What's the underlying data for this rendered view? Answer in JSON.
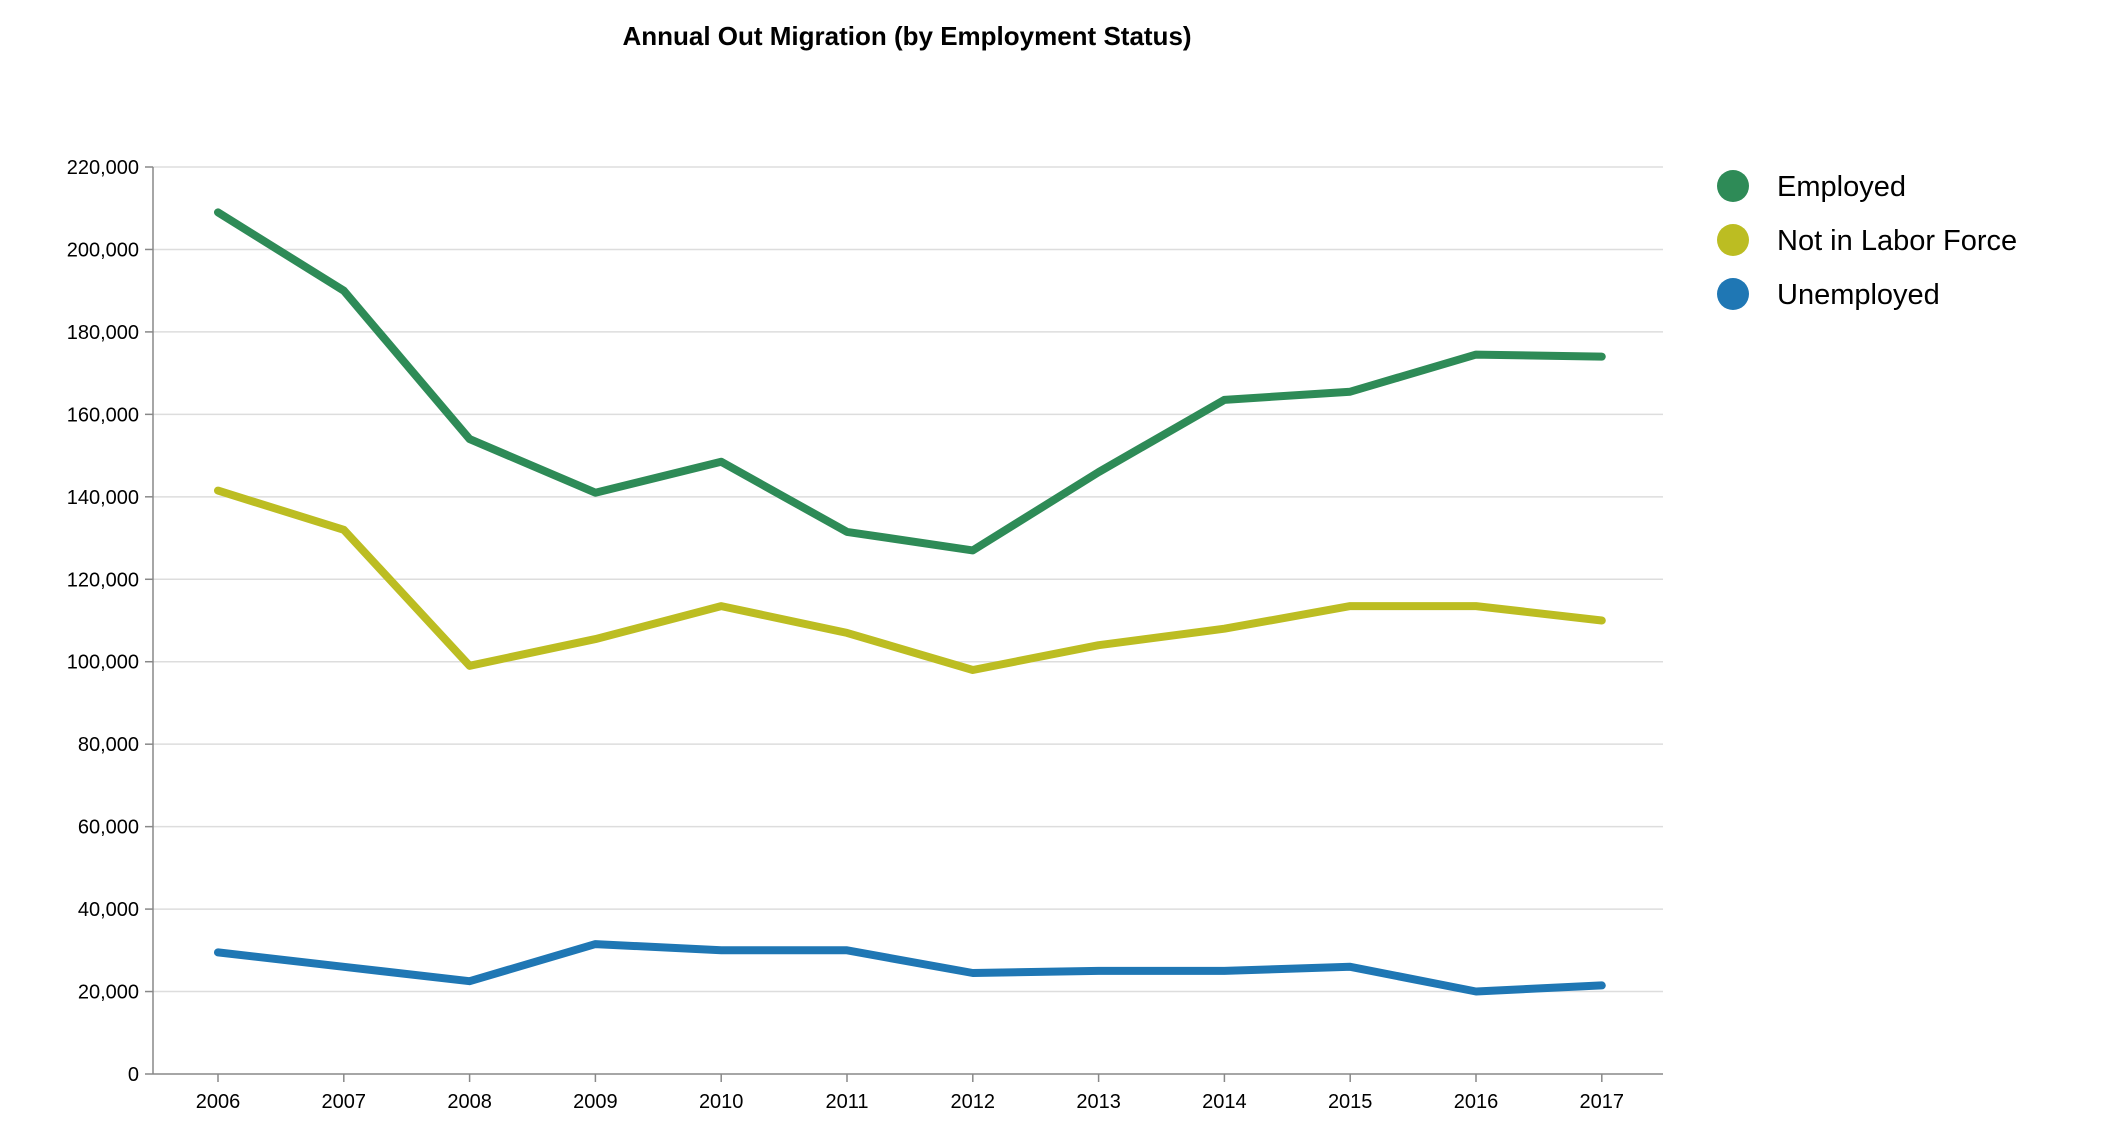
{
  "chart_data": {
    "type": "line",
    "title": "Annual Out Migration (by Employment Status)",
    "xlabel": "",
    "ylabel": "",
    "x": [
      "2006",
      "2007",
      "2008",
      "2009",
      "2010",
      "2011",
      "2012",
      "2013",
      "2014",
      "2015",
      "2016",
      "2017"
    ],
    "ylim": [
      0,
      220000
    ],
    "yticks": [
      0,
      20000,
      40000,
      60000,
      80000,
      100000,
      120000,
      140000,
      160000,
      180000,
      200000,
      220000
    ],
    "ytick_labels": [
      "0",
      "20,000",
      "40,000",
      "60,000",
      "80,000",
      "100,000",
      "120,000",
      "140,000",
      "160,000",
      "180,000",
      "200,000",
      "220,000"
    ],
    "grid": true,
    "legend_position": "top-right",
    "series": [
      {
        "name": "Employed",
        "color": "#2e8b57",
        "values": [
          209000,
          190000,
          154000,
          141000,
          148500,
          131500,
          127000,
          146000,
          163500,
          165500,
          174500,
          174000
        ]
      },
      {
        "name": "Not in Labor Force",
        "color": "#bcbd22",
        "values": [
          141500,
          132000,
          99000,
          105500,
          113500,
          107000,
          98000,
          104000,
          108000,
          113500,
          113500,
          110000
        ]
      },
      {
        "name": "Unemployed",
        "color": "#1f77b4",
        "values": [
          29500,
          26000,
          22500,
          31500,
          30000,
          30000,
          24500,
          25000,
          25000,
          26000,
          20000,
          21500
        ]
      }
    ]
  }
}
